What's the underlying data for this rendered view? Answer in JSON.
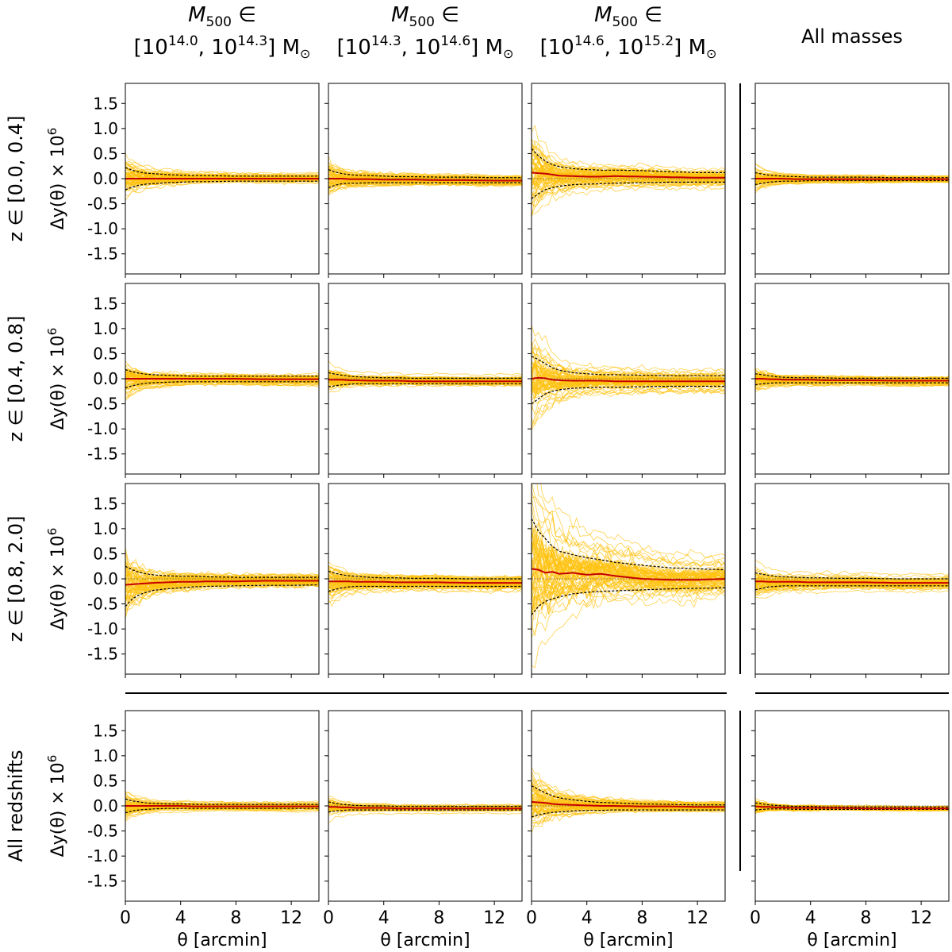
{
  "figure": {
    "column_headers": [
      {
        "line1": "M",
        "line1_sub": "500",
        "line1_rel": " ∈",
        "open": "[10",
        "lo": "14.0",
        "mid": ", 10",
        "hi": "14.3",
        "close": "] M",
        "sun": "⊙"
      },
      {
        "line1": "M",
        "line1_sub": "500",
        "line1_rel": " ∈",
        "open": "[10",
        "lo": "14.3",
        "mid": ", 10",
        "hi": "14.6",
        "close": "] M",
        "sun": "⊙"
      },
      {
        "line1": "M",
        "line1_sub": "500",
        "line1_rel": " ∈",
        "open": "[10",
        "lo": "14.6",
        "mid": ", 10",
        "hi": "15.2",
        "close": "] M",
        "sun": "⊙"
      },
      {
        "text": "All masses"
      }
    ],
    "row_headers": [
      "z ∈ [0.0, 0.4]",
      "z ∈ [0.4, 0.8]",
      "z ∈ [0.8, 2.0]",
      "All redshifts"
    ],
    "ylabel": "Δy(θ) × 10",
    "ylabel_exp": "6",
    "xlabel": "θ [arcmin]",
    "xticks": [
      "0",
      "4",
      "8",
      "12"
    ],
    "yticks": [
      "1.5",
      "1.0",
      "0.5",
      "0.0",
      "-0.5",
      "-1.0",
      "-1.5"
    ],
    "colors": {
      "realizations": "#FFC20E",
      "mean": "#C40000",
      "band": "#000000",
      "zero": "#555555"
    }
  },
  "chart_data": {
    "type": "line",
    "layout": "4x4 grid of panels (redshift bins × mass bins)",
    "xlabel": "θ [arcmin]",
    "ylabel": "Δy(θ) × 10^6",
    "xlim": [
      0,
      14
    ],
    "ylim": [
      -1.9,
      1.9
    ],
    "xticks": [
      0,
      4,
      8,
      12
    ],
    "yticks": [
      -1.5,
      -1.0,
      -0.5,
      0.0,
      0.5,
      1.0,
      1.5
    ],
    "columns": [
      "M500 ∈ [10^14.0, 10^14.3] M☉",
      "M500 ∈ [10^14.3, 10^14.6] M☉",
      "M500 ∈ [10^14.6, 10^15.2] M☉",
      "All masses"
    ],
    "rows": [
      "z ∈ [0.0, 0.4]",
      "z ∈ [0.4, 0.8]",
      "z ∈ [0.8, 2.0]",
      "All redshifts"
    ],
    "series_description": "Many individual realizations (yellow), mean (red solid), ±1σ band (black dashed)",
    "theta_samples": [
      0,
      0.5,
      1,
      1.5,
      2,
      3,
      4,
      5,
      6,
      8,
      10,
      12,
      14
    ],
    "panels": [
      {
        "row": 0,
        "col": 0,
        "realizations": 300,
        "mean": [
          0.0,
          0.0,
          0.0,
          0.0,
          0.0,
          0.0,
          0.0,
          0.0,
          0.0,
          0.0,
          0.0,
          0.0,
          0.0
        ],
        "upper": [
          0.22,
          0.17,
          0.13,
          0.11,
          0.1,
          0.08,
          0.07,
          0.06,
          0.06,
          0.05,
          0.05,
          0.05,
          0.05
        ],
        "lower": [
          -0.22,
          -0.17,
          -0.13,
          -0.11,
          -0.1,
          -0.08,
          -0.07,
          -0.06,
          -0.06,
          -0.05,
          -0.05,
          -0.05,
          -0.05
        ]
      },
      {
        "row": 0,
        "col": 1,
        "realizations": 300,
        "mean": [
          0.0,
          0.0,
          0.0,
          -0.01,
          -0.01,
          -0.01,
          -0.02,
          -0.02,
          -0.02,
          -0.03,
          -0.03,
          -0.04,
          -0.04
        ],
        "upper": [
          0.18,
          0.13,
          0.1,
          0.08,
          0.07,
          0.06,
          0.05,
          0.04,
          0.04,
          0.03,
          0.03,
          0.02,
          0.02
        ],
        "lower": [
          -0.18,
          -0.13,
          -0.1,
          -0.09,
          -0.09,
          -0.08,
          -0.08,
          -0.08,
          -0.08,
          -0.08,
          -0.08,
          -0.08,
          -0.08
        ]
      },
      {
        "row": 0,
        "col": 2,
        "realizations": 300,
        "mean": [
          0.12,
          0.11,
          0.1,
          0.08,
          0.06,
          0.05,
          0.04,
          0.04,
          0.05,
          0.04,
          0.03,
          0.02,
          0.02
        ],
        "upper": [
          0.6,
          0.45,
          0.35,
          0.28,
          0.24,
          0.2,
          0.18,
          0.17,
          0.17,
          0.16,
          0.14,
          0.12,
          0.12
        ],
        "lower": [
          -0.4,
          -0.3,
          -0.22,
          -0.18,
          -0.15,
          -0.12,
          -0.11,
          -0.1,
          -0.09,
          -0.08,
          -0.07,
          -0.07,
          -0.07
        ]
      },
      {
        "row": 0,
        "col": 3,
        "realizations": 300,
        "mean": [
          0.0,
          0.0,
          0.0,
          0.0,
          0.0,
          -0.01,
          -0.01,
          -0.01,
          -0.01,
          -0.01,
          -0.01,
          -0.01,
          -0.01
        ],
        "upper": [
          0.12,
          0.09,
          0.07,
          0.06,
          0.05,
          0.04,
          0.03,
          0.03,
          0.03,
          0.03,
          0.02,
          0.02,
          0.02
        ],
        "lower": [
          -0.12,
          -0.09,
          -0.07,
          -0.06,
          -0.05,
          -0.05,
          -0.04,
          -0.04,
          -0.04,
          -0.04,
          -0.04,
          -0.04,
          -0.04
        ]
      },
      {
        "row": 1,
        "col": 0,
        "realizations": 300,
        "mean": [
          0.0,
          0.0,
          0.0,
          0.0,
          0.0,
          0.0,
          0.0,
          0.0,
          0.0,
          0.0,
          -0.01,
          -0.01,
          -0.01
        ],
        "upper": [
          0.18,
          0.14,
          0.11,
          0.09,
          0.08,
          0.07,
          0.06,
          0.05,
          0.05,
          0.05,
          0.05,
          0.05,
          0.05
        ],
        "lower": [
          -0.18,
          -0.14,
          -0.11,
          -0.09,
          -0.08,
          -0.07,
          -0.06,
          -0.06,
          -0.06,
          -0.06,
          -0.06,
          -0.06,
          -0.06
        ]
      },
      {
        "row": 1,
        "col": 1,
        "realizations": 300,
        "mean": [
          -0.02,
          -0.02,
          -0.02,
          -0.03,
          -0.03,
          -0.04,
          -0.04,
          -0.04,
          -0.05,
          -0.05,
          -0.05,
          -0.05,
          -0.05
        ],
        "upper": [
          0.12,
          0.09,
          0.07,
          0.05,
          0.04,
          0.03,
          0.02,
          0.02,
          0.01,
          0.01,
          0.01,
          0.01,
          0.01
        ],
        "lower": [
          -0.16,
          -0.14,
          -0.12,
          -0.11,
          -0.1,
          -0.1,
          -0.1,
          -0.1,
          -0.1,
          -0.1,
          -0.1,
          -0.1,
          -0.1
        ]
      },
      {
        "row": 1,
        "col": 2,
        "realizations": 300,
        "mean": [
          0.0,
          0.02,
          0.01,
          -0.02,
          -0.03,
          -0.04,
          -0.04,
          -0.04,
          -0.05,
          -0.05,
          -0.05,
          -0.05,
          -0.05
        ],
        "upper": [
          0.45,
          0.38,
          0.3,
          0.22,
          0.17,
          0.12,
          0.1,
          0.08,
          0.08,
          0.07,
          0.06,
          0.06,
          0.06
        ],
        "lower": [
          -0.5,
          -0.4,
          -0.3,
          -0.25,
          -0.22,
          -0.19,
          -0.18,
          -0.17,
          -0.17,
          -0.16,
          -0.15,
          -0.15,
          -0.15
        ]
      },
      {
        "row": 1,
        "col": 3,
        "realizations": 300,
        "mean": [
          0.0,
          0.0,
          -0.01,
          -0.01,
          -0.02,
          -0.02,
          -0.02,
          -0.03,
          -0.03,
          -0.03,
          -0.04,
          -0.04,
          -0.04
        ],
        "upper": [
          0.1,
          0.08,
          0.06,
          0.04,
          0.03,
          0.02,
          0.02,
          0.02,
          0.01,
          0.01,
          0.01,
          0.01,
          0.01
        ],
        "lower": [
          -0.12,
          -0.1,
          -0.09,
          -0.08,
          -0.08,
          -0.08,
          -0.08,
          -0.08,
          -0.08,
          -0.08,
          -0.08,
          -0.08,
          -0.08
        ]
      },
      {
        "row": 2,
        "col": 0,
        "realizations": 300,
        "mean": [
          -0.12,
          -0.11,
          -0.1,
          -0.09,
          -0.08,
          -0.07,
          -0.06,
          -0.06,
          -0.05,
          -0.05,
          -0.04,
          -0.04,
          -0.04
        ],
        "upper": [
          0.25,
          0.18,
          0.13,
          0.1,
          0.08,
          0.06,
          0.05,
          0.05,
          0.04,
          0.03,
          0.03,
          0.03,
          0.03
        ],
        "lower": [
          -0.55,
          -0.4,
          -0.32,
          -0.27,
          -0.23,
          -0.2,
          -0.18,
          -0.16,
          -0.15,
          -0.14,
          -0.13,
          -0.13,
          -0.12
        ]
      },
      {
        "row": 2,
        "col": 1,
        "realizations": 300,
        "mean": [
          -0.05,
          -0.05,
          -0.05,
          -0.05,
          -0.06,
          -0.06,
          -0.06,
          -0.07,
          -0.07,
          -0.07,
          -0.08,
          -0.08,
          -0.08
        ],
        "upper": [
          0.15,
          0.11,
          0.08,
          0.06,
          0.05,
          0.03,
          0.02,
          0.02,
          0.01,
          0.01,
          0.0,
          0.0,
          0.0
        ],
        "lower": [
          -0.25,
          -0.21,
          -0.18,
          -0.16,
          -0.15,
          -0.15,
          -0.15,
          -0.15,
          -0.15,
          -0.15,
          -0.15,
          -0.15,
          -0.15
        ]
      },
      {
        "row": 2,
        "col": 2,
        "realizations": 300,
        "mean": [
          0.2,
          0.18,
          0.12,
          0.14,
          0.1,
          0.12,
          0.08,
          0.1,
          0.06,
          0.0,
          -0.02,
          -0.02,
          0.0
        ],
        "upper": [
          1.2,
          0.95,
          0.8,
          0.65,
          0.55,
          0.48,
          0.42,
          0.38,
          0.33,
          0.27,
          0.22,
          0.2,
          0.18
        ],
        "lower": [
          -0.72,
          -0.55,
          -0.45,
          -0.4,
          -0.36,
          -0.3,
          -0.27,
          -0.25,
          -0.24,
          -0.22,
          -0.2,
          -0.19,
          -0.18
        ]
      },
      {
        "row": 2,
        "col": 3,
        "realizations": 300,
        "mean": [
          -0.05,
          -0.05,
          -0.06,
          -0.06,
          -0.06,
          -0.06,
          -0.07,
          -0.07,
          -0.07,
          -0.07,
          -0.08,
          -0.08,
          -0.08
        ],
        "upper": [
          0.12,
          0.09,
          0.07,
          0.05,
          0.04,
          0.03,
          0.02,
          0.02,
          0.01,
          0.01,
          0.0,
          0.0,
          0.0
        ],
        "lower": [
          -0.22,
          -0.19,
          -0.16,
          -0.15,
          -0.14,
          -0.14,
          -0.14,
          -0.14,
          -0.14,
          -0.14,
          -0.14,
          -0.14,
          -0.14
        ]
      },
      {
        "row": 3,
        "col": 0,
        "realizations": 300,
        "mean": [
          0.0,
          0.0,
          0.0,
          0.0,
          0.0,
          0.0,
          0.0,
          -0.01,
          -0.01,
          -0.01,
          -0.01,
          -0.01,
          -0.01
        ],
        "upper": [
          0.14,
          0.1,
          0.08,
          0.06,
          0.05,
          0.04,
          0.04,
          0.03,
          0.03,
          0.03,
          0.03,
          0.03,
          0.03
        ],
        "lower": [
          -0.14,
          -0.1,
          -0.08,
          -0.07,
          -0.06,
          -0.05,
          -0.05,
          -0.05,
          -0.05,
          -0.05,
          -0.05,
          -0.05,
          -0.05
        ]
      },
      {
        "row": 3,
        "col": 1,
        "realizations": 300,
        "mean": [
          -0.02,
          -0.02,
          -0.03,
          -0.03,
          -0.04,
          -0.04,
          -0.04,
          -0.05,
          -0.05,
          -0.05,
          -0.05,
          -0.05,
          -0.05
        ],
        "upper": [
          0.08,
          0.05,
          0.03,
          0.02,
          0.01,
          0.0,
          0.0,
          -0.01,
          -0.01,
          -0.01,
          -0.01,
          -0.01,
          -0.01
        ],
        "lower": [
          -0.12,
          -0.1,
          -0.09,
          -0.08,
          -0.08,
          -0.08,
          -0.08,
          -0.08,
          -0.08,
          -0.08,
          -0.08,
          -0.08,
          -0.08
        ]
      },
      {
        "row": 3,
        "col": 2,
        "realizations": 300,
        "mean": [
          0.08,
          0.07,
          0.06,
          0.04,
          0.03,
          0.02,
          0.01,
          0.0,
          0.0,
          -0.01,
          -0.01,
          -0.02,
          -0.02
        ],
        "upper": [
          0.4,
          0.33,
          0.26,
          0.2,
          0.16,
          0.12,
          0.09,
          0.07,
          0.06,
          0.04,
          0.03,
          0.02,
          0.02
        ],
        "lower": [
          -0.22,
          -0.18,
          -0.15,
          -0.13,
          -0.12,
          -0.1,
          -0.09,
          -0.09,
          -0.08,
          -0.08,
          -0.08,
          -0.08,
          -0.08
        ]
      },
      {
        "row": 3,
        "col": 3,
        "realizations": 300,
        "mean": [
          -0.01,
          -0.02,
          -0.02,
          -0.03,
          -0.03,
          -0.04,
          -0.04,
          -0.04,
          -0.04,
          -0.05,
          -0.05,
          -0.05,
          -0.05
        ],
        "upper": [
          0.06,
          0.04,
          0.02,
          0.01,
          0.0,
          -0.01,
          -0.01,
          -0.02,
          -0.02,
          -0.02,
          -0.02,
          -0.02,
          -0.02
        ],
        "lower": [
          -0.08,
          -0.07,
          -0.06,
          -0.06,
          -0.06,
          -0.07,
          -0.07,
          -0.07,
          -0.07,
          -0.07,
          -0.07,
          -0.07,
          -0.07
        ]
      }
    ]
  }
}
